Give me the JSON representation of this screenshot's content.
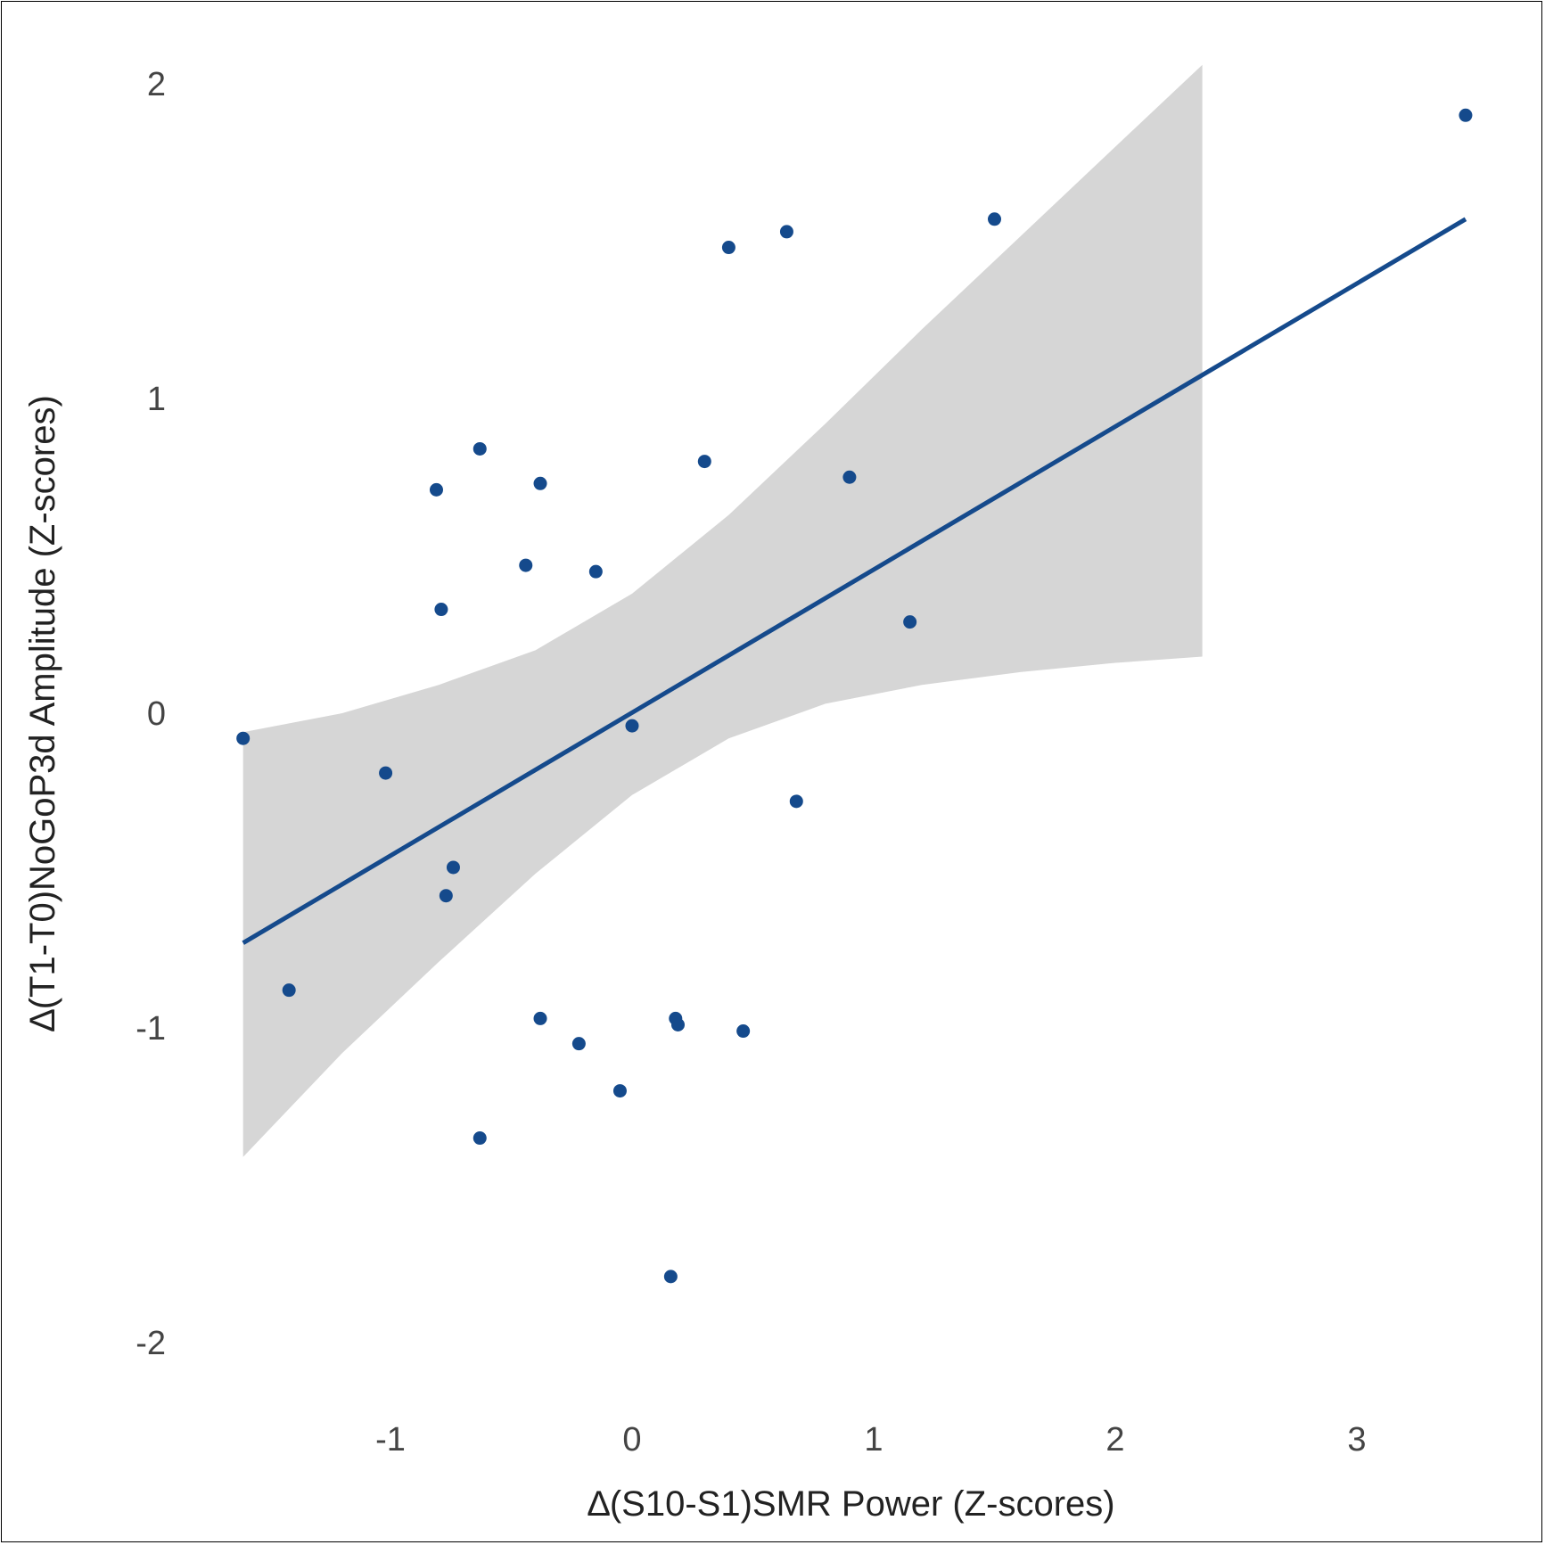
{
  "chart_data": {
    "type": "scatter",
    "title": "",
    "xlabel": "∆(S10-S1)SMR Power (Z-scores)",
    "ylabel": "∆(T1-T0)NoGoP3d Amplitude (Z-scores)",
    "xlim": [
      -1.6,
      3.45
    ],
    "ylim": [
      -2.22,
      2.1
    ],
    "x_ticks": [
      -1,
      0,
      1,
      2,
      3
    ],
    "x_tick_labels": [
      "-1",
      "0",
      "1",
      "2",
      "3"
    ],
    "y_ticks": [
      -2,
      -1,
      0,
      1,
      2
    ],
    "y_tick_labels": [
      "-2",
      "-1",
      "0",
      "1",
      "2"
    ],
    "grid": false,
    "legend": "none",
    "point_color": "#154a8c",
    "line_color": "#154a8c",
    "band_color": "#d6d6d6",
    "points": [
      {
        "x": -1.61,
        "y": -0.08
      },
      {
        "x": -1.42,
        "y": -0.88
      },
      {
        "x": -1.02,
        "y": -0.19
      },
      {
        "x": -0.81,
        "y": 0.71
      },
      {
        "x": -0.79,
        "y": 0.33
      },
      {
        "x": -0.77,
        "y": -0.58
      },
      {
        "x": -0.74,
        "y": -0.49
      },
      {
        "x": -0.63,
        "y": 0.84
      },
      {
        "x": -0.63,
        "y": -1.35
      },
      {
        "x": -0.44,
        "y": 0.47
      },
      {
        "x": -0.38,
        "y": 0.73
      },
      {
        "x": -0.38,
        "y": -0.97
      },
      {
        "x": -0.22,
        "y": -1.05
      },
      {
        "x": -0.15,
        "y": 0.45
      },
      {
        "x": -0.05,
        "y": -1.2
      },
      {
        "x": 0.0,
        "y": -0.04
      },
      {
        "x": 0.16,
        "y": -1.79
      },
      {
        "x": 0.18,
        "y": -0.97
      },
      {
        "x": 0.19,
        "y": -0.99
      },
      {
        "x": 0.3,
        "y": 0.8
      },
      {
        "x": 0.4,
        "y": 1.48
      },
      {
        "x": 0.46,
        "y": -1.01
      },
      {
        "x": 0.64,
        "y": 1.53
      },
      {
        "x": 0.68,
        "y": -0.28
      },
      {
        "x": 0.9,
        "y": 0.75
      },
      {
        "x": 1.15,
        "y": 0.29
      },
      {
        "x": 1.5,
        "y": 1.57
      },
      {
        "x": 3.45,
        "y": 1.9
      }
    ],
    "regression": {
      "x": [
        -1.61,
        3.45
      ],
      "y": [
        -0.73,
        1.57
      ]
    },
    "confidence_band": {
      "x": [
        -1.61,
        -1.2,
        -0.8,
        -0.4,
        0.0,
        0.4,
        0.8,
        1.2,
        1.6,
        2.0,
        2.36
      ],
      "upper": [
        -0.06,
        0.0,
        0.09,
        0.2,
        0.38,
        0.63,
        0.92,
        1.22,
        1.51,
        1.8,
        2.06
      ],
      "lower": [
        -1.41,
        -1.08,
        -0.79,
        -0.51,
        -0.26,
        -0.08,
        0.03,
        0.09,
        0.13,
        0.16,
        0.18
      ]
    }
  }
}
